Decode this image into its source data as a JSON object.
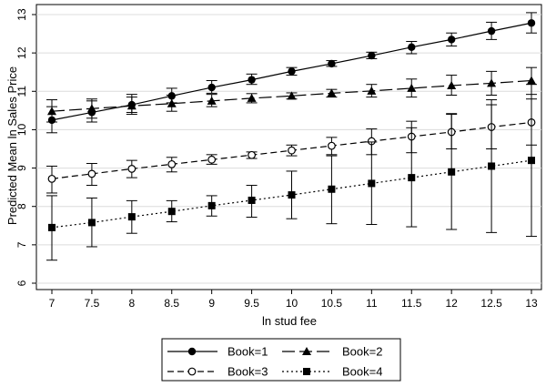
{
  "chart_data": {
    "type": "line",
    "xlabel": "ln stud fee",
    "ylabel": "Predicted Mean ln Sales Price",
    "x": [
      7,
      7.5,
      8,
      8.5,
      9,
      9.5,
      10,
      10.5,
      11,
      11.5,
      12,
      12.5,
      13
    ],
    "xticks": [
      "7",
      "7.5",
      "8",
      "8.5",
      "9",
      "9.5",
      "10",
      "10.5",
      "11",
      "11.5",
      "12",
      "12.5",
      "13"
    ],
    "yticks": [
      "6",
      "7",
      "8",
      "9",
      "10",
      "11",
      "12",
      "13"
    ],
    "xlim": [
      7,
      13
    ],
    "ylim": [
      6,
      13
    ],
    "grid": "horizontal",
    "legend_position": "bottom",
    "series": [
      {
        "name": "Book=1",
        "marker": "filled-circle",
        "line_style": "solid",
        "values": [
          10.25,
          10.45,
          10.65,
          10.88,
          11.1,
          11.3,
          11.52,
          11.72,
          11.93,
          12.15,
          12.35,
          12.57,
          12.78
        ],
        "lower": [
          9.92,
          10.2,
          10.45,
          10.7,
          10.95,
          11.18,
          11.42,
          11.65,
          11.85,
          11.98,
          12.18,
          12.35,
          12.52
        ],
        "upper": [
          10.6,
          10.75,
          10.92,
          11.08,
          11.28,
          11.45,
          11.62,
          11.8,
          12.02,
          12.3,
          12.52,
          12.8,
          13.05
        ]
      },
      {
        "name": "Book=2",
        "marker": "filled-triangle",
        "line_style": "long-dash",
        "values": [
          10.48,
          10.55,
          10.62,
          10.68,
          10.75,
          10.82,
          10.88,
          10.95,
          11.01,
          11.08,
          11.15,
          11.21,
          11.28
        ],
        "lower": [
          10.2,
          10.3,
          10.4,
          10.48,
          10.6,
          10.7,
          10.8,
          10.85,
          10.85,
          10.85,
          10.9,
          10.9,
          10.92
        ],
        "upper": [
          10.78,
          10.8,
          10.85,
          10.9,
          10.92,
          10.94,
          10.96,
          11.05,
          11.18,
          11.32,
          11.42,
          11.52,
          11.62
        ]
      },
      {
        "name": "Book=3",
        "marker": "hollow-circle",
        "line_style": "dash",
        "values": [
          8.72,
          8.85,
          8.98,
          9.1,
          9.22,
          9.34,
          9.46,
          9.58,
          9.7,
          9.82,
          9.94,
          10.07,
          10.19
        ],
        "lower": [
          8.35,
          8.55,
          8.75,
          8.9,
          9.1,
          9.25,
          9.32,
          9.35,
          9.35,
          9.4,
          9.5,
          9.5,
          9.6
        ],
        "upper": [
          9.05,
          9.12,
          9.2,
          9.28,
          9.35,
          9.42,
          9.6,
          9.8,
          10.02,
          10.22,
          10.42,
          10.65,
          10.8
        ]
      },
      {
        "name": "Book=4",
        "marker": "filled-square",
        "line_style": "dotted",
        "values": [
          7.45,
          7.58,
          7.73,
          7.87,
          8.02,
          8.16,
          8.3,
          8.45,
          8.6,
          8.75,
          8.9,
          9.05,
          9.2
        ],
        "lower": [
          6.6,
          6.95,
          7.3,
          7.6,
          7.75,
          7.72,
          7.68,
          7.55,
          7.53,
          7.47,
          7.4,
          7.32,
          7.22
        ],
        "upper": [
          8.28,
          8.22,
          8.15,
          8.15,
          8.28,
          8.55,
          8.92,
          9.32,
          9.68,
          10.05,
          10.4,
          10.78,
          11.18
        ]
      }
    ]
  }
}
